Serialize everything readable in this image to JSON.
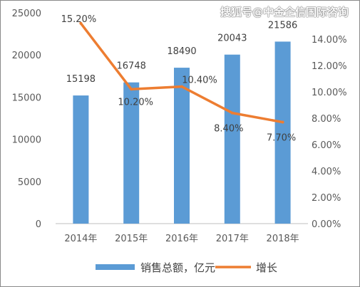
{
  "watermark": "搜狐号@中金企信国际咨询",
  "chart_data": {
    "type": "bar",
    "categories": [
      "2014年",
      "2015年",
      "2016年",
      "2017年",
      "2018年"
    ],
    "series": [
      {
        "name": "销售总额，亿元",
        "type": "bar",
        "axis": "left",
        "values": [
          15198,
          16748,
          18490,
          20043,
          21586
        ],
        "labels": [
          "15198",
          "16748",
          "18490",
          "20043",
          "21586"
        ]
      },
      {
        "name": "增长",
        "type": "line",
        "axis": "right",
        "values": [
          15.2,
          10.2,
          10.4,
          8.4,
          7.7
        ],
        "labels": [
          "15.20%",
          "10.20%",
          "10.40%",
          "8.40%",
          "7.70%"
        ]
      }
    ],
    "ylim_left": [
      0,
      25000
    ],
    "yticks_left": [
      "0",
      "5000",
      "10000",
      "15000",
      "20000",
      "25000"
    ],
    "ylim_right": [
      0,
      16
    ],
    "yticks_right": [
      "0.00%",
      "2.00%",
      "4.00%",
      "6.00%",
      "8.00%",
      "10.00%",
      "12.00%",
      "14.00%"
    ],
    "legend_position": "bottom",
    "colors": {
      "bar": "#5b9bd5",
      "line": "#ed7d31"
    },
    "grid": false
  }
}
